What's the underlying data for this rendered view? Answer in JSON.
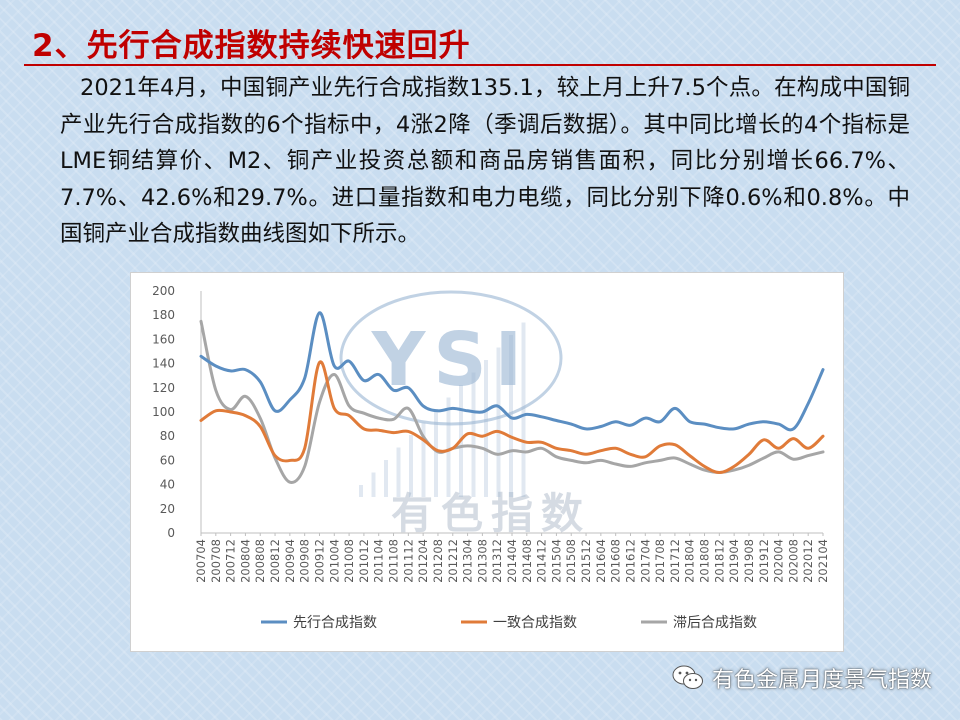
{
  "heading": {
    "title": "2、先行合成指数持续快速回升"
  },
  "paragraph": {
    "text": "2021年4月，中国铜产业先行合成指数135.1，较上月上升7.5个点。在构成中国铜产业先行合成指数的6个指标中，4涨2降（季调后数据）。其中同比增长的4个指标是LME铜结算价、M2、铜产业投资总额和商品房销售面积，同比分别增长66.7%、7.7%、42.6%和29.7%。进口量指数和电力电缆，同比分别下降0.6%和0.8%。中国铜产业合成指数曲线图如下所示。"
  },
  "watermark": {
    "text": "有色指数",
    "logo_letters": "YSI"
  },
  "footer": {
    "text": "有色金属月度景气指数",
    "icon": "wechat-icon"
  },
  "colors": {
    "leading": "#5b8ec2",
    "coincident": "#e07b39",
    "lagging": "#a6a6a6"
  },
  "chart_data": {
    "type": "line",
    "title": "",
    "xlabel": "",
    "ylabel": "",
    "ylim": [
      0,
      200
    ],
    "yticks": [
      0,
      20,
      40,
      60,
      80,
      100,
      120,
      140,
      160,
      180,
      200
    ],
    "x_tick_labels": [
      "200704",
      "200708",
      "200712",
      "200804",
      "200808",
      "200812",
      "200904",
      "200908",
      "200912",
      "201004",
      "201008",
      "201012",
      "201104",
      "201108",
      "201112",
      "201204",
      "201208",
      "201212",
      "201304",
      "201308",
      "201312",
      "201404",
      "201408",
      "201412",
      "201504",
      "201508",
      "201512",
      "201604",
      "201608",
      "201612",
      "201704",
      "201708",
      "201712",
      "201804",
      "201808",
      "201812",
      "201904",
      "201908",
      "201912",
      "202004",
      "202008",
      "202012",
      "202104"
    ],
    "legend_position": "bottom",
    "grid": false,
    "series": [
      {
        "name": "先行合成指数",
        "color": "#5b8ec2",
        "values": [
          146,
          138,
          134,
          135,
          125,
          101,
          110,
          128,
          182,
          138,
          142,
          126,
          131,
          118,
          120,
          105,
          101,
          103,
          101,
          100,
          105,
          95,
          98,
          96,
          93,
          90,
          86,
          88,
          92,
          89,
          95,
          92,
          103,
          92,
          90,
          87,
          86,
          90,
          92,
          90,
          86,
          107,
          135
        ]
      },
      {
        "name": "一致合成指数",
        "color": "#e07b39",
        "values": [
          93,
          101,
          100,
          97,
          88,
          64,
          60,
          70,
          141,
          103,
          97,
          86,
          85,
          83,
          84,
          77,
          68,
          70,
          82,
          80,
          84,
          79,
          75,
          75,
          70,
          68,
          65,
          68,
          70,
          65,
          63,
          72,
          73,
          64,
          55,
          50,
          55,
          65,
          77,
          70,
          78,
          70,
          80
        ]
      },
      {
        "name": "滞后合成指数",
        "color": "#a6a6a6",
        "values": [
          175,
          118,
          102,
          113,
          95,
          62,
          42,
          55,
          108,
          131,
          105,
          99,
          95,
          94,
          103,
          80,
          67,
          70,
          72,
          70,
          65,
          68,
          67,
          70,
          63,
          60,
          58,
          60,
          57,
          55,
          58,
          60,
          62,
          57,
          52,
          50,
          52,
          56,
          62,
          67,
          61,
          64,
          67
        ]
      }
    ]
  }
}
